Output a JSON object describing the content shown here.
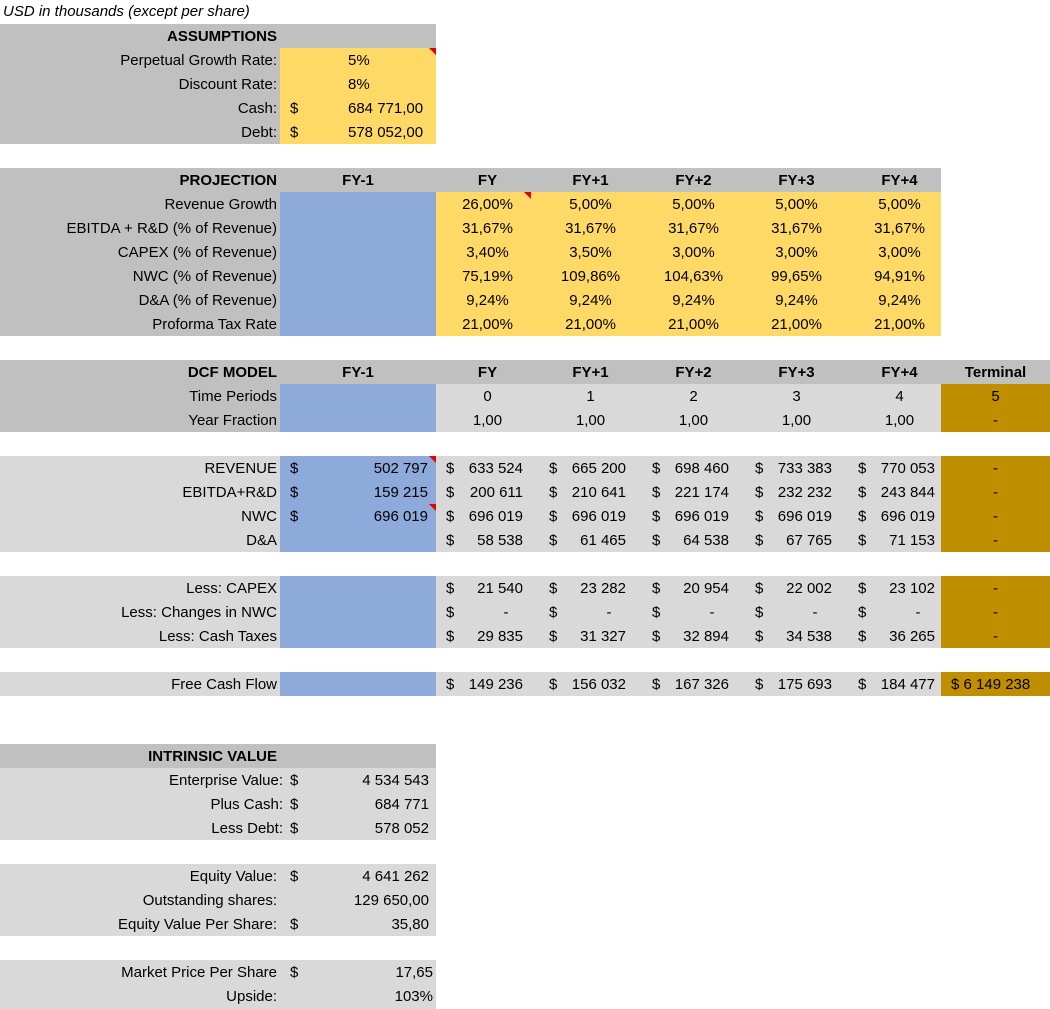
{
  "header": {
    "units_note": "USD in thousands (except per share)"
  },
  "assumptions": {
    "title": "ASSUMPTIONS",
    "rows": [
      {
        "label": "Perpetual Growth Rate:",
        "currency": "",
        "value": "5%"
      },
      {
        "label": "Discount Rate:",
        "currency": "",
        "value": "8%"
      },
      {
        "label": "Cash:",
        "currency": "$",
        "value": "684 771,00"
      },
      {
        "label": "Debt:",
        "currency": "$",
        "value": "578 052,00"
      }
    ]
  },
  "projection": {
    "title": "PROJECTION",
    "columns": [
      "FY-1",
      "FY",
      "FY+1",
      "FY+2",
      "FY+3",
      "FY+4"
    ],
    "rows": [
      {
        "label": "Revenue Growth",
        "values": [
          "26,00%",
          "5,00%",
          "5,00%",
          "5,00%",
          "5,00%"
        ]
      },
      {
        "label": "EBITDA + R&D (% of Revenue)",
        "values": [
          "31,67%",
          "31,67%",
          "31,67%",
          "31,67%",
          "31,67%"
        ]
      },
      {
        "label": "CAPEX (% of Revenue)",
        "values": [
          "3,40%",
          "3,50%",
          "3,00%",
          "3,00%",
          "3,00%"
        ]
      },
      {
        "label": "NWC (% of Revenue)",
        "values": [
          "75,19%",
          "109,86%",
          "104,63%",
          "99,65%",
          "94,91%"
        ]
      },
      {
        "label": "D&A (% of Revenue)",
        "values": [
          "9,24%",
          "9,24%",
          "9,24%",
          "9,24%",
          "9,24%"
        ]
      },
      {
        "label": "Proforma Tax Rate",
        "values": [
          "21,00%",
          "21,00%",
          "21,00%",
          "21,00%",
          "21,00%"
        ]
      }
    ]
  },
  "dcf": {
    "title": "DCF MODEL",
    "columns": [
      "FY-1",
      "FY",
      "FY+1",
      "FY+2",
      "FY+3",
      "FY+4",
      "Terminal"
    ],
    "time_periods": {
      "label": "Time Periods",
      "values": [
        "0",
        "1",
        "2",
        "3",
        "4",
        "5"
      ]
    },
    "year_fraction": {
      "label": "Year Fraction",
      "values": [
        "1,00",
        "1,00",
        "1,00",
        "1,00",
        "1,00",
        "-"
      ]
    }
  },
  "financials": {
    "currency": "$",
    "rows": [
      {
        "label": "REVENUE",
        "cur": "$",
        "fy_minus1": "502 797",
        "values": [
          "633 524",
          "665 200",
          "698 460",
          "733 383",
          "770 053"
        ],
        "terminal": "-"
      },
      {
        "label": "EBITDA+R&D",
        "cur": "$",
        "fy_minus1": "159 215",
        "values": [
          "200 611",
          "210 641",
          "221 174",
          "232 232",
          "243 844"
        ],
        "terminal": "-"
      },
      {
        "label": "NWC",
        "cur": "$",
        "fy_minus1": "696 019",
        "values": [
          "696 019",
          "696 019",
          "696 019",
          "696 019",
          "696 019"
        ],
        "terminal": "-"
      },
      {
        "label": "D&A",
        "cur": "",
        "fy_minus1": "",
        "values": [
          "58 538",
          "61 465",
          "64 538",
          "67 765",
          "71 153"
        ],
        "terminal": "-"
      }
    ]
  },
  "deductions": {
    "rows": [
      {
        "label": "Less: CAPEX",
        "values": [
          "21 540",
          "23 282",
          "20 954",
          "22 002",
          "23 102"
        ],
        "terminal": "-"
      },
      {
        "label": "Less: Changes in NWC",
        "values": [
          "-",
          "-",
          "-",
          "-",
          "-"
        ],
        "terminal": "-"
      },
      {
        "label": "Less: Cash Taxes",
        "values": [
          "29 835",
          "31 327",
          "32 894",
          "34 538",
          "36 265"
        ],
        "terminal": "-"
      }
    ]
  },
  "free_cash_flow": {
    "label": "Free Cash Flow",
    "values": [
      "149 236",
      "156 032",
      "167 326",
      "175 693",
      "184 477"
    ],
    "terminal": "$ 6 149 238"
  },
  "intrinsic_value": {
    "title": "INTRINSIC VALUE",
    "rows": [
      {
        "label": "Enterprise Value:",
        "cur": "$",
        "value": "4 534 543"
      },
      {
        "label": "Plus Cash:",
        "cur": "$",
        "value": "684 771"
      },
      {
        "label": "Less Debt:",
        "cur": "$",
        "value": "578 052"
      }
    ]
  },
  "equity": {
    "rows": [
      {
        "label": "Equity Value:",
        "cur": "$",
        "value": "4 641 262"
      },
      {
        "label": "Outstanding shares:",
        "cur": "",
        "value": "129 650,00"
      },
      {
        "label": "Equity Value Per Share:",
        "cur": "$",
        "value": "35,80"
      }
    ]
  },
  "market": {
    "rows": [
      {
        "label": "Market Price Per Share",
        "cur": "$",
        "value": "17,65"
      },
      {
        "label": "Upside:",
        "cur": "",
        "value": "103%"
      }
    ]
  },
  "colors": {
    "input_yellow": "#ffd966",
    "historic_blue": "#8eaadb",
    "terminal_gold": "#bf8f00",
    "header_grey": "#c0c0c0",
    "body_grey": "#d9d9d9",
    "comment_marker": "#e00000"
  }
}
